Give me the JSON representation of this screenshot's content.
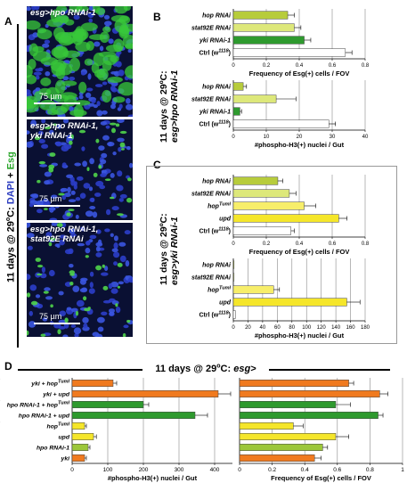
{
  "panels": {
    "A": "A",
    "B": "B",
    "C": "C",
    "D": "D"
  },
  "colors": {
    "hop": "#b7cc3c",
    "stat92e": "#dde87a",
    "yki": "#2e9a2e",
    "ctrl": "#ffffff",
    "hop_tuml": "#f7ee6a",
    "upd": "#f5e62a",
    "orange": "#f07a1f",
    "green": "#2e9a2e",
    "yellow": "#f5e62a",
    "lime": "#9cc73a"
  },
  "panel_a": {
    "axis_label_parts": [
      "11 days @ 29",
      "o",
      "C: ",
      "DAPI",
      " + ",
      "Esg"
    ],
    "images": [
      {
        "label": "esg>hpo RNAi-1",
        "scale": "75 µm"
      },
      {
        "label": "esg>hpo RNAi-1,\nyki RNAi-1",
        "scale": "75 µm"
      },
      {
        "label": "esg>hpo RNAi-1,\nstat92E RNAi",
        "scale": "75 µm"
      }
    ]
  },
  "panel_b": {
    "side_label_line1": "11 days @ 29ºC:",
    "side_label_line2": "esg>hpo RNAi-1"
  },
  "panel_c": {
    "side_label_line1": "11 days @ 29ºC:",
    "side_label_line2": "esg>yki RNAi-1"
  },
  "panel_d": {
    "header": "11 days @ 29ºC: esg>"
  },
  "chart_data": [
    {
      "id": "B-top",
      "type": "bar",
      "orientation": "horizontal",
      "categories": [
        "hop RNAi",
        "stat92E RNAi",
        "yki RNAi-1",
        "Ctrl (w1118)"
      ],
      "values": [
        0.33,
        0.37,
        0.43,
        0.68
      ],
      "errors": [
        0.04,
        0.04,
        0.04,
        0.04
      ],
      "colors": [
        "#b7cc3c",
        "#dde87a",
        "#2e9a2e",
        "#ffffff"
      ],
      "xlim": [
        0,
        0.8
      ],
      "ticks": [
        "0",
        "0.2",
        "0.4",
        "0.6",
        "0.8"
      ],
      "xlabel": "Frequency of Esg(+) cells / FOV"
    },
    {
      "id": "B-bottom",
      "type": "bar",
      "orientation": "horizontal",
      "categories": [
        "hop RNAi",
        "stat92E RNAi",
        "yki RNAi-1",
        "Ctrl (w1118)"
      ],
      "values": [
        3,
        13,
        2,
        29
      ],
      "errors": [
        1,
        6,
        0.5,
        2
      ],
      "colors": [
        "#b7cc3c",
        "#dde87a",
        "#2e9a2e",
        "#ffffff"
      ],
      "xlim": [
        0,
        40
      ],
      "ticks": [
        "0",
        "10",
        "20",
        "30",
        "40"
      ],
      "xlabel": "#phospho-H3(+) nuclei / Gut"
    },
    {
      "id": "C-top",
      "type": "bar",
      "orientation": "horizontal",
      "categories": [
        "hop RNAi",
        "stat92E RNAi",
        "hopTuml",
        "upd",
        "Ctrl (w1118)"
      ],
      "values": [
        0.27,
        0.34,
        0.43,
        0.64,
        0.35
      ],
      "errors": [
        0.03,
        0.04,
        0.07,
        0.05,
        0.02
      ],
      "colors": [
        "#b7cc3c",
        "#dde87a",
        "#f7ee6a",
        "#f5e62a",
        "#ffffff"
      ],
      "xlim": [
        0,
        0.8
      ],
      "ticks": [
        "0",
        "0.2",
        "0.4",
        "0.6",
        "0.8"
      ],
      "xlabel": "Frequency of Esg(+) cells / FOV"
    },
    {
      "id": "C-bottom",
      "type": "bar",
      "orientation": "horizontal",
      "categories": [
        "hop RNAi",
        "stat92E RNAi",
        "hopTuml",
        "upd",
        "Ctrl (w1118)"
      ],
      "values": [
        0.5,
        0.5,
        55,
        155,
        3
      ],
      "errors": [
        0,
        0,
        8,
        18,
        0
      ],
      "colors": [
        "#b7cc3c",
        "#dde87a",
        "#f7ee6a",
        "#f5e62a",
        "#ffffff"
      ],
      "xlim": [
        0,
        180
      ],
      "ticks": [
        "0",
        "20",
        "40",
        "60",
        "80",
        "100",
        "120",
        "140",
        "160",
        "180"
      ],
      "xlabel": "#phospho-H3(+) nuclei / Gut"
    },
    {
      "id": "D-left",
      "type": "bar",
      "orientation": "horizontal",
      "categories": [
        "yki + hopTuml",
        "yki + upd",
        "hpo RNAi-1 + hopTuml",
        "hpo RNAi-1 + upd",
        "hopTuml",
        "upd",
        "hpo RNAi-1",
        "yki"
      ],
      "values": [
        115,
        410,
        200,
        345,
        35,
        60,
        45,
        35
      ],
      "errors": [
        10,
        35,
        15,
        35,
        5,
        8,
        5,
        5
      ],
      "colors": [
        "#f07a1f",
        "#f07a1f",
        "#2e9a2e",
        "#2e9a2e",
        "#f5e62a",
        "#f5e62a",
        "#9cc73a",
        "#f07a1f"
      ],
      "xlim": [
        0,
        450
      ],
      "ticks": [
        "0",
        "100",
        "200",
        "300",
        "400"
      ],
      "xlabel": "#phospho-H3(+) nuclei / Gut"
    },
    {
      "id": "D-right",
      "type": "bar",
      "orientation": "horizontal",
      "categories": [
        "yki + hopTuml",
        "yki + upd",
        "hpo RNAi-1 + hopTuml",
        "hpo RNAi-1 + upd",
        "hopTuml",
        "upd",
        "hpo RNAi-1",
        "yki"
      ],
      "values": [
        0.67,
        0.86,
        0.59,
        0.85,
        0.33,
        0.59,
        0.51,
        0.46
      ],
      "errors": [
        0.03,
        0.05,
        0.09,
        0.03,
        0.06,
        0.08,
        0.03,
        0.04
      ],
      "colors": [
        "#f07a1f",
        "#f07a1f",
        "#2e9a2e",
        "#2e9a2e",
        "#f5e62a",
        "#f5e62a",
        "#9cc73a",
        "#f07a1f"
      ],
      "xlim": [
        0,
        1
      ],
      "ticks": [
        "0",
        "0.2",
        "0.4",
        "0.6",
        "0.8",
        "1"
      ],
      "xlabel": "Frequency of Esg(+) cells / FOV"
    }
  ]
}
